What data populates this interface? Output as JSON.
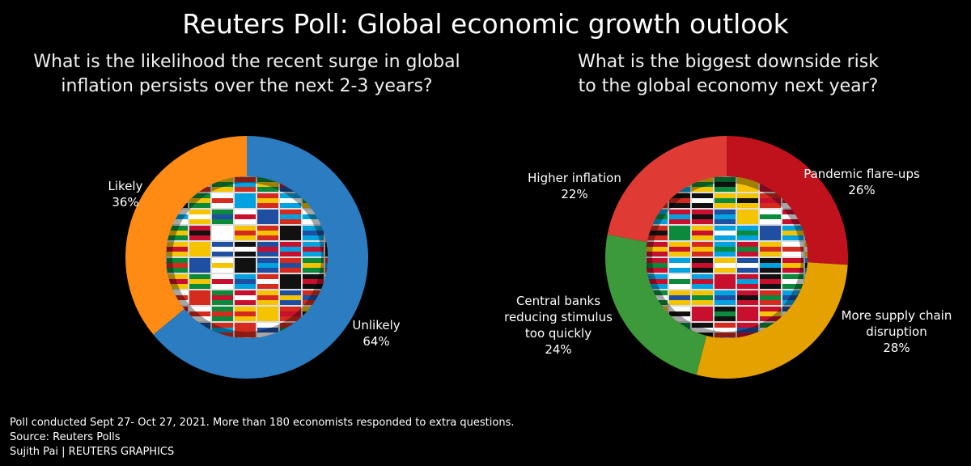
{
  "title": "Reuters Poll: Global economic growth outlook",
  "chart_data": [
    {
      "type": "pie",
      "title": "What is the likelihood the recent surge in global inflation persists over the next 2-3 years?",
      "categories": [
        "Unlikely",
        "Likely"
      ],
      "values": [
        64,
        36
      ],
      "value_labels": [
        "64%",
        "36%"
      ],
      "colors": [
        "#2b7cc0",
        "#ff8a14"
      ]
    },
    {
      "type": "pie",
      "title": "What is the biggest downside risk to the global economy next year?",
      "categories": [
        "Pandemic flare-ups",
        "More supply chain disruption",
        "Central banks reducing stimulus too quickly",
        "Higher inflation"
      ],
      "values": [
        26,
        28,
        24,
        22
      ],
      "value_labels": [
        "26%",
        "28%",
        "24%",
        "22%"
      ],
      "colors": [
        "#c0121d",
        "#e5a100",
        "#3c9a3a",
        "#e03a34"
      ]
    }
  ],
  "notes": [
    "Poll conducted Sept 27- Oct 27, 2021. More than 180 economists responded to extra questions.",
    "Source: Reuters Polls",
    "Sujith Pai | REUTERS GRAPHICS"
  ]
}
